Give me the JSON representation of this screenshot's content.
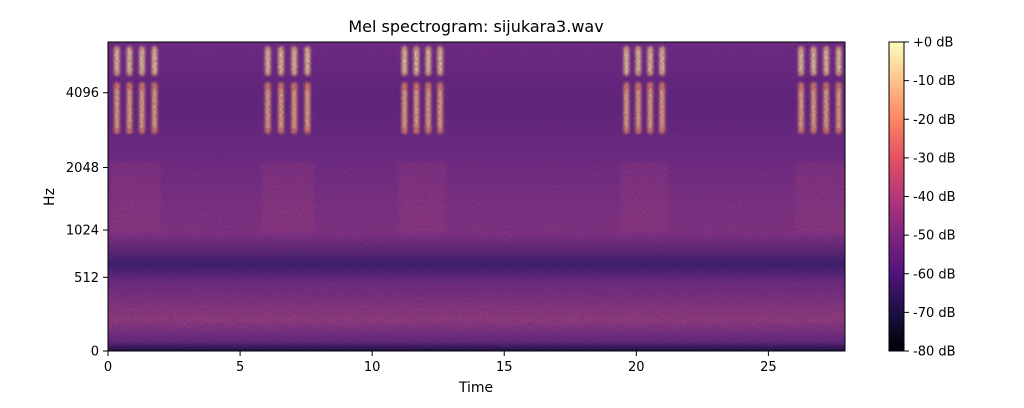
{
  "chart_data": {
    "type": "heatmap",
    "title": "Mel spectrogram: sijukara3.wav",
    "xlabel": "Time",
    "ylabel": "Hz",
    "xlim": [
      0,
      27.9
    ],
    "x_ticks": [
      {
        "value": 0,
        "label": "0"
      },
      {
        "value": 5,
        "label": "5"
      },
      {
        "value": 10,
        "label": "10"
      },
      {
        "value": 15,
        "label": "15"
      },
      {
        "value": 20,
        "label": "20"
      },
      {
        "value": 25,
        "label": "25"
      }
    ],
    "y_scale": "mel",
    "y_ticks": [
      {
        "value": 0,
        "label": "0"
      },
      {
        "value": 512,
        "label": "512"
      },
      {
        "value": 1024,
        "label": "1024"
      },
      {
        "value": 2048,
        "label": "2048"
      },
      {
        "value": 4096,
        "label": "4096"
      }
    ],
    "colormap": "magma",
    "colorbar": {
      "range": [
        -80,
        0
      ],
      "ticks": [
        {
          "value": 0,
          "label": "+0 dB"
        },
        {
          "value": -10,
          "label": "-10 dB"
        },
        {
          "value": -20,
          "label": "-20 dB"
        },
        {
          "value": -30,
          "label": "-30 dB"
        },
        {
          "value": -40,
          "label": "-40 dB"
        },
        {
          "value": -50,
          "label": "-50 dB"
        },
        {
          "value": -60,
          "label": "-60 dB"
        },
        {
          "value": -70,
          "label": "-70 dB"
        },
        {
          "value": -80,
          "label": "-80 dB"
        }
      ]
    },
    "background_level_db": -55,
    "call_bursts": [
      {
        "start": 0.1,
        "end": 2.0
      },
      {
        "start": 5.8,
        "end": 7.8
      },
      {
        "start": 11.0,
        "end": 12.8
      },
      {
        "start": 19.4,
        "end": 21.2
      },
      {
        "start": 26.0,
        "end": 27.9
      }
    ]
  }
}
